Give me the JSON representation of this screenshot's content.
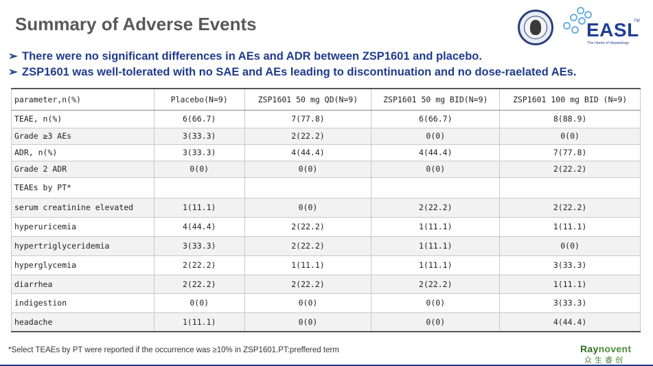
{
  "title": "Summary of Adverse Events",
  "bullets": [
    "There were no significant differences in AEs and ADR between ZSP1601 and placebo.",
    "ZSP1601 was well-tolerated with no SAE and AEs leading to discontinuation and no dose-raelated AEs."
  ],
  "bullet_glyph": "➢",
  "logos": {
    "easl_word": "EASL",
    "easl_tm": "TM",
    "easl_tagline": "The Home of Hepatology",
    "seal_name": "university-seal"
  },
  "table": {
    "headers": [
      "parameter,n(%)",
      "Placebo(N=9)",
      "ZSP1601 50 mg QD(N=9)",
      "ZSP1601 50 mg BID(N=9)",
      "ZSP1601 100 mg BID (N=9)"
    ],
    "rows": [
      [
        "TEAE, n(%)",
        "6(66.7)",
        "7(77.8)",
        "6(66.7)",
        "8(88.9)"
      ],
      [
        "Grade ≥3 AEs",
        "3(33.3)",
        "2(22.2)",
        "0(0)",
        "0(0)"
      ],
      [
        "ADR, n(%)",
        "3(33.3)",
        "4(44.4)",
        "4(44.4)",
        "7(77.8)"
      ],
      [
        "Grade 2 ADR",
        "0(0)",
        "0(0)",
        "0(0)",
        "2(22.2)"
      ],
      [
        "TEAEs by PT*",
        "",
        "",
        "",
        ""
      ],
      [
        "serum creatinine elevated",
        "1(11.1)",
        "0(0)",
        "2(22.2)",
        "2(22.2)"
      ],
      [
        "hyperuricemia",
        "4(44.4)",
        "2(22.2)",
        "1(11.1)",
        "1(11.1)"
      ],
      [
        "hypertriglyceridemia",
        "3(33.3)",
        "2(22.2)",
        "1(11.1)",
        "0(0)"
      ],
      [
        "hyperglycemia",
        "2(22.2)",
        "1(11.1)",
        "1(11.1)",
        "3(33.3)"
      ],
      [
        "diarrhea",
        "2(22.2)",
        "2(22.2)",
        "2(22.2)",
        "1(11.1)"
      ],
      [
        "indigestion",
        "0(0)",
        "0(0)",
        "0(0)",
        "3(33.3)"
      ],
      [
        "headache",
        "1(11.1)",
        "0(0)",
        "0(0)",
        "4(44.4)"
      ]
    ]
  },
  "footnote": "*Select TEAEs by PT were reported if the occurrence was ≥10% in ZSP1601.PT:preffered term",
  "brand": {
    "en_prefix": "Ray",
    "en_suffix": "novent",
    "cn": "众生睿创"
  }
}
